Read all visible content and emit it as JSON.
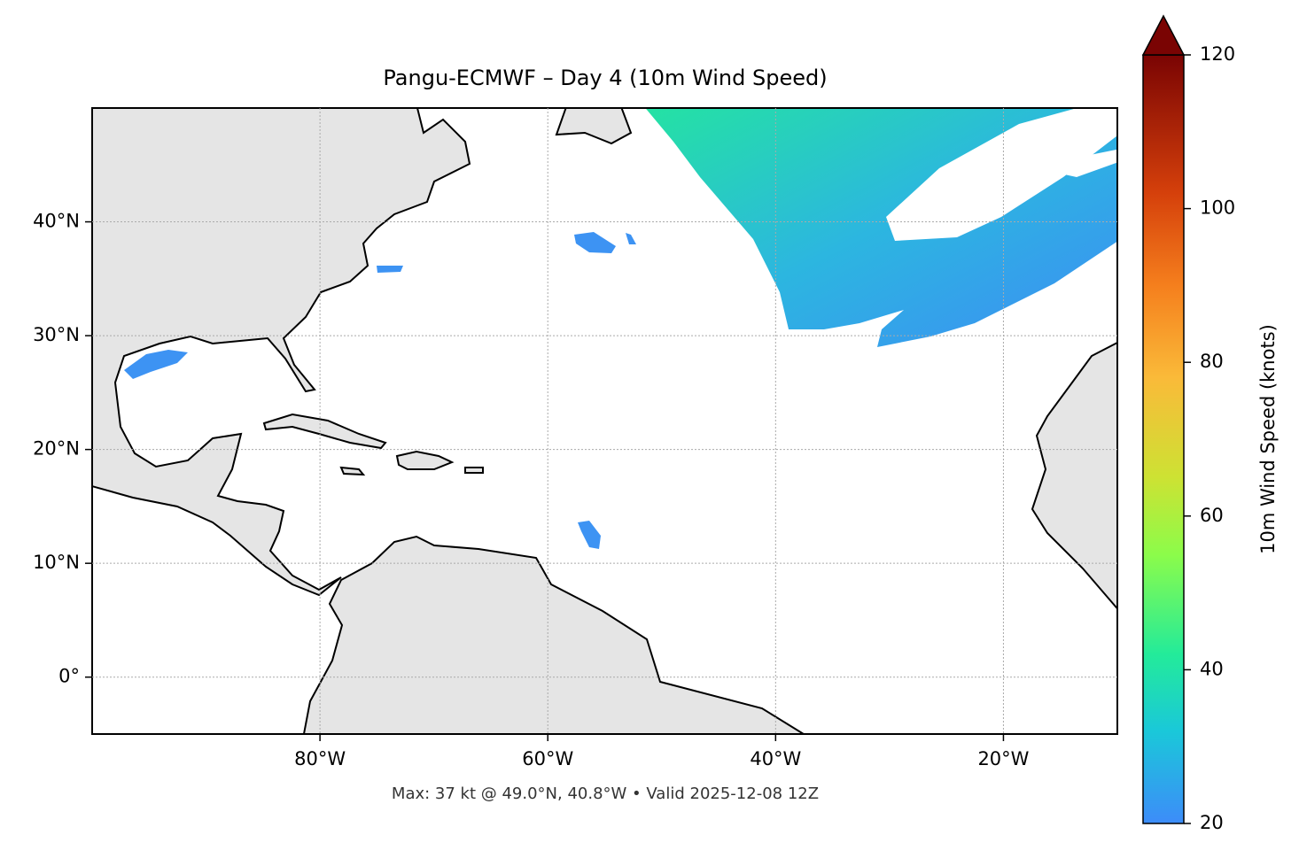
{
  "chart_data": {
    "type": "map",
    "title": "Pangu-ECMWF – Day 4 (10m Wind Speed)",
    "annotation": "Max: 37 kt @ 49.0°N, 40.8°W • Valid 2025-12-08 12Z",
    "xlim": [
      -100,
      -10
    ],
    "ylim": [
      -5,
      50
    ],
    "xticks": [
      {
        "value": -80,
        "label": "80°W"
      },
      {
        "value": -60,
        "label": "60°W"
      },
      {
        "value": -40,
        "label": "40°W"
      },
      {
        "value": -20,
        "label": "20°W"
      }
    ],
    "yticks": [
      {
        "value": 0,
        "label": "0°"
      },
      {
        "value": 10,
        "label": "10°N"
      },
      {
        "value": 20,
        "label": "20°N"
      },
      {
        "value": 30,
        "label": "30°N"
      },
      {
        "value": 40,
        "label": "40°N"
      }
    ],
    "grid": true,
    "colorbar": {
      "label": "10m Wind Speed (knots)",
      "lim": [
        20,
        120
      ],
      "ticks": [
        20,
        40,
        60,
        80,
        100,
        120
      ]
    }
  }
}
